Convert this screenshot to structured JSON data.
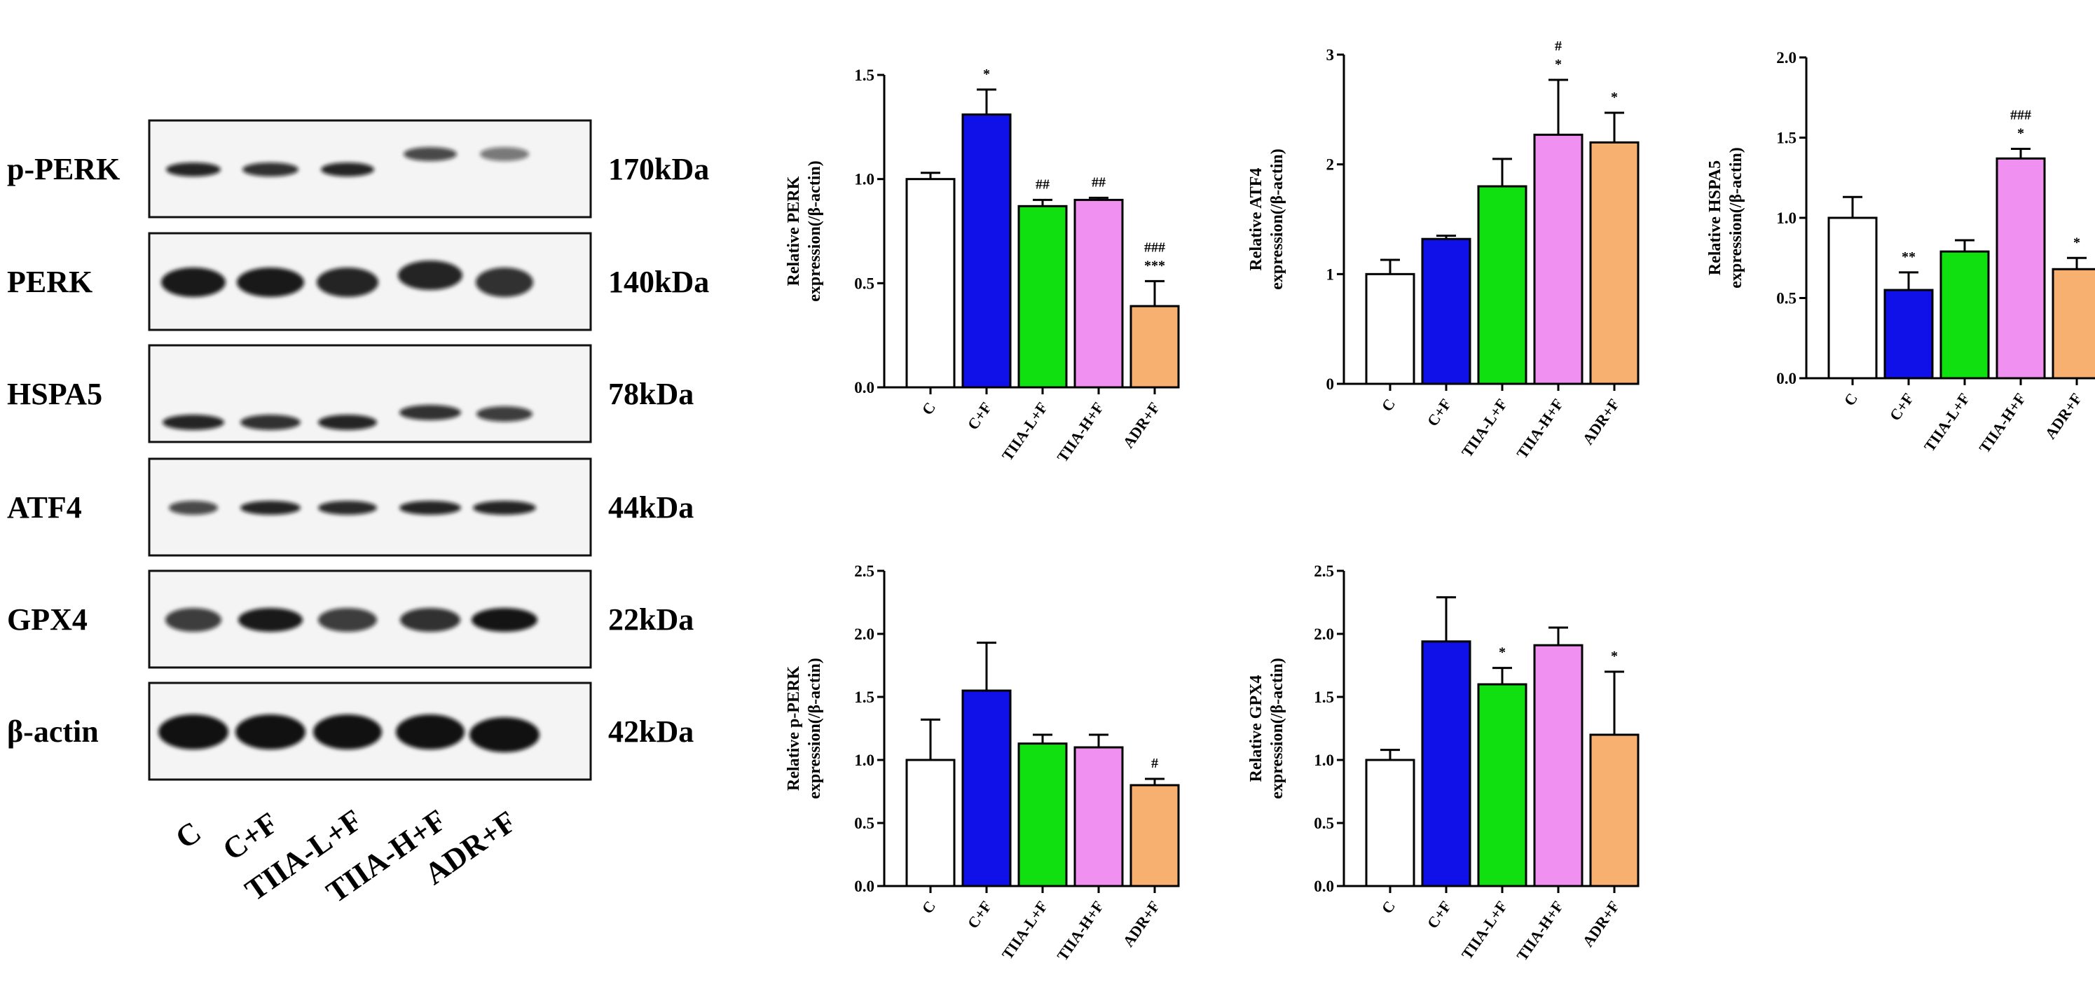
{
  "western_blot": {
    "lanes": [
      "C",
      "C+F",
      "TIIA-L+F",
      "TIIA-H+F",
      "ADR+F"
    ],
    "rows": [
      {
        "protein": "p-PERK",
        "kda": "170kDa"
      },
      {
        "protein": "PERK",
        "kda": "140kDa"
      },
      {
        "protein": "HSPA5",
        "kda": "78kDa"
      },
      {
        "protein": "ATF4",
        "kda": "44kDa"
      },
      {
        "protein": "GPX4",
        "kda": "22kDa"
      },
      {
        "protein": "β-actin",
        "kda": "42kDa"
      }
    ]
  },
  "colors": {
    "bars": [
      "#ffffff",
      "#1010e8",
      "#10e010",
      "#f090f0",
      "#f8b070"
    ],
    "axis": "#000000"
  },
  "chart_data": [
    {
      "type": "bar",
      "id": "perk",
      "title": "",
      "ylabel": [
        "Relative  PERK",
        "expression(/β-actin)"
      ],
      "categories": [
        "C",
        "C+F",
        "TIIA-L+F",
        "TIIA-H+F",
        "ADR+F"
      ],
      "values": [
        1.0,
        1.31,
        0.87,
        0.9,
        0.39
      ],
      "errors": [
        0.03,
        0.12,
        0.03,
        0.01,
        0.12
      ],
      "significance": [
        [],
        [
          "*"
        ],
        [
          "##"
        ],
        [
          "##"
        ],
        [
          "###",
          "***"
        ]
      ],
      "ylim": [
        0,
        1.5
      ],
      "yticks": [
        "0.0",
        "0.5",
        "1.0",
        "1.5"
      ]
    },
    {
      "type": "bar",
      "id": "atf4",
      "title": "",
      "ylabel": [
        "Relative  ATF4",
        "expression(/β-actin)"
      ],
      "categories": [
        "C",
        "C+F",
        "TIIA-L+F",
        "TIIA-H+F",
        "ADR+F"
      ],
      "values": [
        1.0,
        1.32,
        1.8,
        2.27,
        2.2
      ],
      "errors": [
        0.13,
        0.03,
        0.25,
        0.5,
        0.27
      ],
      "significance": [
        [],
        [],
        [],
        [
          "#",
          "*"
        ],
        [
          "*"
        ]
      ],
      "ylim": [
        0,
        3
      ],
      "yticks": [
        "0",
        "1",
        "2",
        "3"
      ]
    },
    {
      "type": "bar",
      "id": "hspa5",
      "title": "",
      "ylabel": [
        "Relative  HSPA5",
        "expression(/β-actin)"
      ],
      "categories": [
        "C",
        "C+F",
        "TIIA-L+F",
        "TIIA-H+F",
        "ADR+F"
      ],
      "values": [
        1.0,
        0.55,
        0.79,
        1.37,
        0.68
      ],
      "errors": [
        0.13,
        0.11,
        0.07,
        0.06,
        0.07
      ],
      "significance": [
        [],
        [
          "**"
        ],
        [],
        [
          "###",
          "*"
        ],
        [
          "*"
        ]
      ],
      "ylim": [
        0,
        2.0
      ],
      "yticks": [
        "0.0",
        "0.5",
        "1.0",
        "1.5",
        "2.0"
      ]
    },
    {
      "type": "bar",
      "id": "p-perk",
      "title": "",
      "ylabel": [
        "Relative  p-PERK",
        "expression(/β-actin)"
      ],
      "categories": [
        "C",
        "C+F",
        "TIIA-L+F",
        "TIIA-H+F",
        "ADR+F"
      ],
      "values": [
        1.0,
        1.55,
        1.13,
        1.1,
        0.8
      ],
      "errors": [
        0.32,
        0.38,
        0.07,
        0.1,
        0.05
      ],
      "significance": [
        [],
        [],
        [],
        [],
        [
          "#"
        ]
      ],
      "ylim": [
        0,
        2.5
      ],
      "yticks": [
        "0.0",
        "0.5",
        "1.0",
        "1.5",
        "2.0",
        "2.5"
      ]
    },
    {
      "type": "bar",
      "id": "gpx4",
      "title": "",
      "ylabel": [
        "Relative  GPX4",
        "expression(/β-actin)"
      ],
      "categories": [
        "C",
        "C+F",
        "TIIA-L+F",
        "TIIA-H+F",
        "ADR+F"
      ],
      "values": [
        1.0,
        1.94,
        1.6,
        1.91,
        1.2
      ],
      "errors": [
        0.08,
        0.35,
        0.13,
        0.14,
        0.5
      ],
      "significance": [
        [],
        [],
        [
          "*"
        ],
        [],
        [
          "*"
        ]
      ],
      "ylim": [
        0,
        2.5
      ],
      "yticks": [
        "0.0",
        "0.5",
        "1.0",
        "1.5",
        "2.0",
        "2.5"
      ]
    }
  ]
}
